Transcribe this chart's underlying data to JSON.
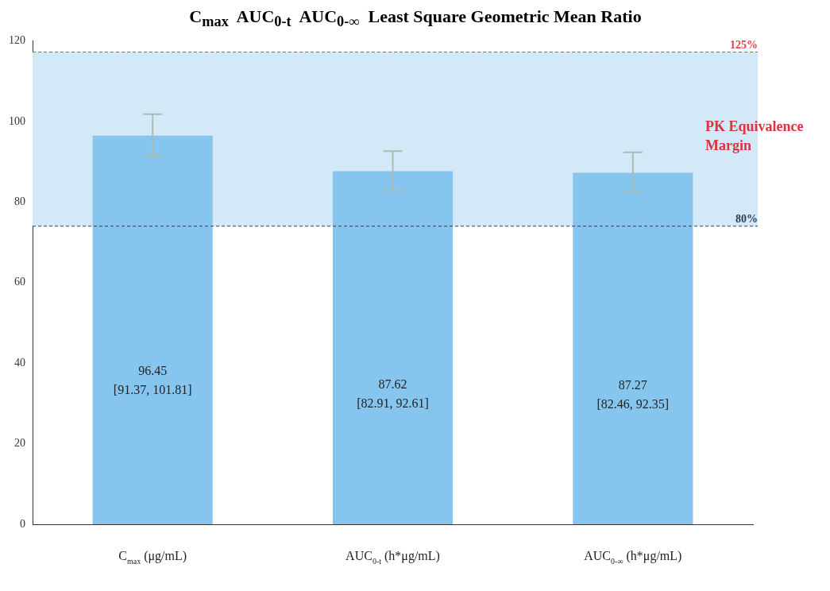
{
  "chart_data": {
    "type": "bar",
    "title": "C$_{max}$  AUC$_{0-t}$  AUC$_{0-∞}$  Least Square Geometric Mean Ratio",
    "categories": [
      "C$_{max}$ (μg/mL)",
      "AUC$_{0-t}$ (h*μg/mL)",
      "AUC$_{0-∞}$ (h*μg/mL)"
    ],
    "values": [
      96.45,
      87.62,
      87.27
    ],
    "color": "#86c5ee",
    "errors": [
      [
        91.37,
        101.81
      ],
      [
        82.91,
        92.61
      ],
      [
        82.46,
        92.35
      ]
    ],
    "value_labels": [
      "96.45\n[91.37, 101.81]",
      "87.62\n[82.91, 92.61]",
      "87.27\n[82.46, 92.35]"
    ],
    "ylim": [
      0,
      120
    ],
    "yticks": [
      0,
      20,
      40,
      60,
      80,
      100,
      120
    ],
    "grid": false,
    "legend": false,
    "ref_lines": [
      {
        "axis": "y",
        "value": 117.2,
        "color": "#e0404a",
        "line_style": "dashed"
      },
      {
        "axis": "y",
        "value": 74,
        "color": "#2d3e50",
        "line_style": "dashed"
      }
    ],
    "annotations": [
      {
        "text": "125%",
        "y": 117.2
      },
      {
        "text": "80%",
        "y": 74
      }
    ],
    "bands": [
      {
        "axis": "y",
        "from": 74,
        "to": 117.2,
        "label": "PK Equivalence Margin",
        "color": "#d3e9f7"
      }
    ]
  }
}
